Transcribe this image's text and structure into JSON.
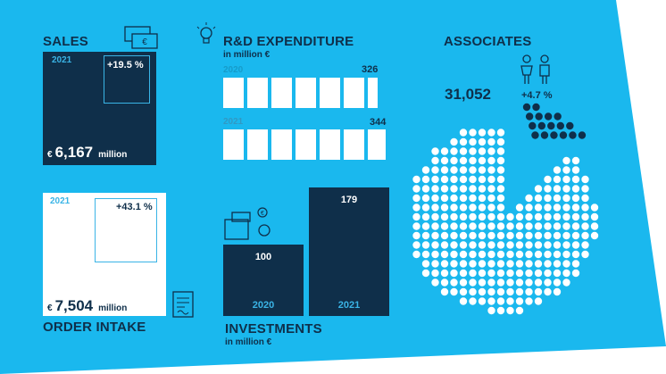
{
  "colors": {
    "accent": "#1ab8ee",
    "navy": "#0f2f4a",
    "white": "#ffffff"
  },
  "sales": {
    "title": "SALES",
    "year": "2021",
    "growth": "+19.5 %",
    "currency": "€",
    "value": "6,167",
    "unit": "million",
    "icon": "money-icon"
  },
  "order_intake": {
    "title": "ORDER INTAKE",
    "year": "2021",
    "growth": "+43.1 %",
    "currency": "€",
    "value": "7,504",
    "unit": "million",
    "icon": "document-icon"
  },
  "rnd": {
    "title": "R&D EXPENDITURE",
    "subtitle": "in million €",
    "icon": "lightbulb-icon",
    "rows": [
      {
        "year": "2020",
        "value": "326"
      },
      {
        "year": "2021",
        "value": "344"
      }
    ]
  },
  "investments": {
    "title": "INVESTMENTS",
    "subtitle": "in million €",
    "icon": "factory-icon",
    "bars": [
      {
        "year": "2020",
        "value": "100"
      },
      {
        "year": "2021",
        "value": "179"
      }
    ]
  },
  "associates": {
    "title": "ASSOCIATES",
    "value": "31,052",
    "growth": "+4.7 %",
    "icon": "people-icon"
  },
  "chart_data": [
    {
      "type": "bar",
      "title": "INVESTMENTS",
      "ylabel": "in million €",
      "categories": [
        "2020",
        "2021"
      ],
      "values": [
        100,
        179
      ]
    },
    {
      "type": "bar",
      "title": "R&D EXPENDITURE",
      "ylabel": "in million €",
      "categories": [
        "2020",
        "2021"
      ],
      "values": [
        326,
        344
      ]
    }
  ]
}
